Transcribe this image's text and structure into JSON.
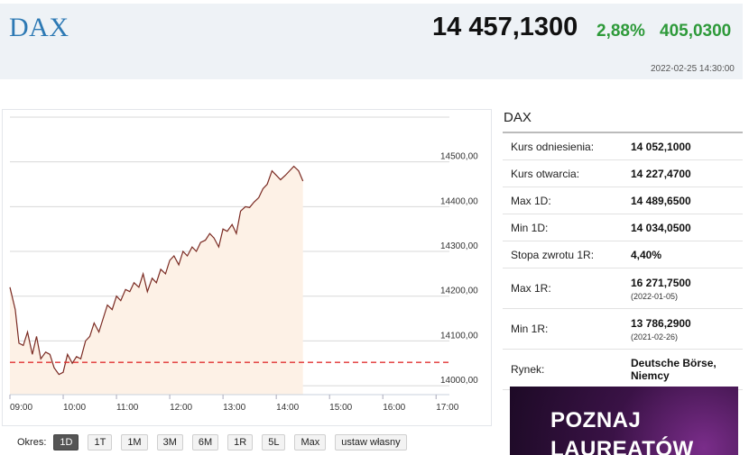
{
  "header": {
    "name": "DAX",
    "price": "14 457,1300",
    "change_pct": "2,88%",
    "change_abs": "405,0300",
    "timestamp": "2022-02-25 14:30:00"
  },
  "periods": {
    "label": "Okres:",
    "buttons": [
      "1D",
      "1T",
      "1M",
      "3M",
      "6M",
      "1R",
      "5L",
      "Max",
      "ustaw własny"
    ],
    "active": "1D"
  },
  "side": {
    "title": "DAX",
    "stats": [
      {
        "label": "Kurs odniesienia:",
        "value": "14 052,1000"
      },
      {
        "label": "Kurs otwarcia:",
        "value": "14 227,4700"
      },
      {
        "label": "Max 1D:",
        "value": "14 489,6500"
      },
      {
        "label": "Min 1D:",
        "value": "14 034,0500"
      },
      {
        "label": "Stopa zwrotu 1R:",
        "value": "4,40%"
      },
      {
        "label": "Max 1R:",
        "value": "16 271,7500",
        "sub": "(2022-01-05)"
      },
      {
        "label": "Min 1R:",
        "value": "13 786,2900",
        "sub": "(2021-02-26)"
      },
      {
        "label": "Rynek:",
        "value": "Deutsche Börse, Niemcy"
      }
    ]
  },
  "ad": {
    "line1": "POZNAJ",
    "line2": "LAUREATÓW"
  },
  "chart_data": {
    "type": "area",
    "title": "",
    "xlabel": "",
    "ylabel": "",
    "x_ticks": [
      "09:00",
      "10:00",
      "11:00",
      "12:00",
      "13:00",
      "14:00",
      "15:00",
      "16:00",
      "17:00"
    ],
    "y_ticks": [
      "14000,00",
      "14100,00",
      "14200,00",
      "14300,00",
      "14400,00",
      "14500,00"
    ],
    "y_tick_values": [
      14000,
      14100,
      14200,
      14300,
      14400,
      14500
    ],
    "ylim": [
      13980,
      14600
    ],
    "xlim": [
      9.0,
      17.25
    ],
    "reference_line": 14052.1,
    "grid": true,
    "colors": {
      "line": "#7a2a22",
      "fill": "#fdf1e6",
      "reference": "#e03030",
      "grid": "#d8d8d8"
    },
    "series": [
      {
        "x": [
          9.0,
          9.1,
          9.17,
          9.25,
          9.33,
          9.42,
          9.5,
          9.58,
          9.67,
          9.75,
          9.83,
          9.92,
          10.0,
          10.08,
          10.17,
          10.25,
          10.33,
          10.42,
          10.5,
          10.58,
          10.67,
          10.75,
          10.83,
          10.92,
          11.0,
          11.08,
          11.17,
          11.25,
          11.33,
          11.42,
          11.5,
          11.58,
          11.67,
          11.75,
          11.83,
          11.92,
          12.0,
          12.08,
          12.17,
          12.25,
          12.33,
          12.42,
          12.5,
          12.58,
          12.67,
          12.75,
          12.83,
          12.92,
          13.0,
          13.08,
          13.17,
          13.25,
          13.33,
          13.42,
          13.5,
          13.58,
          13.67,
          13.75,
          13.83,
          13.92,
          14.0,
          14.08,
          14.17,
          14.25,
          14.33,
          14.42,
          14.5
        ],
        "y": [
          14220,
          14170,
          14095,
          14090,
          14120,
          14070,
          14110,
          14060,
          14075,
          14070,
          14040,
          14025,
          14030,
          14070,
          14050,
          14065,
          14060,
          14100,
          14110,
          14140,
          14120,
          14150,
          14180,
          14170,
          14200,
          14190,
          14215,
          14210,
          14230,
          14220,
          14250,
          14210,
          14240,
          14230,
          14260,
          14250,
          14280,
          14290,
          14270,
          14300,
          14290,
          14310,
          14300,
          14320,
          14325,
          14340,
          14330,
          14310,
          14350,
          14345,
          14360,
          14340,
          14390,
          14400,
          14398,
          14410,
          14420,
          14440,
          14450,
          14480,
          14470,
          14460,
          14470,
          14480,
          14490,
          14480,
          14457
        ]
      }
    ]
  }
}
